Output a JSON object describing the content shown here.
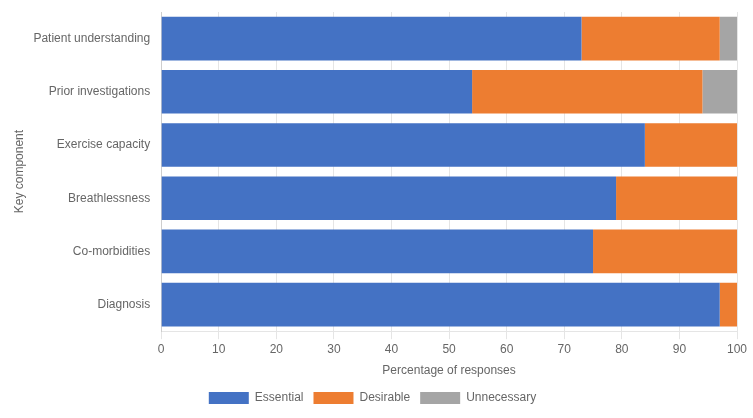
{
  "chart_data": {
    "type": "bar",
    "orientation": "horizontal",
    "stacked": true,
    "categories": [
      "Diagnosis",
      "Co-morbidities",
      "Breathlessness",
      "Exercise capacity",
      "Prior investigations",
      "Patient understanding"
    ],
    "series": [
      {
        "name": "Essential",
        "color": "#4472c4",
        "values": [
          97,
          75,
          79,
          84,
          54,
          73
        ]
      },
      {
        "name": "Desirable",
        "color": "#ed7d31",
        "values": [
          3,
          25,
          21,
          16,
          40,
          24
        ]
      },
      {
        "name": "Unnecessary",
        "color": "#a5a5a5",
        "values": [
          0,
          0,
          0,
          0,
          6,
          3
        ]
      }
    ],
    "xlabel": "Percentage of responses",
    "ylabel": "Key component",
    "xlim": [
      0,
      100
    ],
    "xticks": [
      0,
      10,
      20,
      30,
      40,
      50,
      60,
      70,
      80,
      90,
      100
    ],
    "grid": true,
    "legend": "bottom"
  }
}
